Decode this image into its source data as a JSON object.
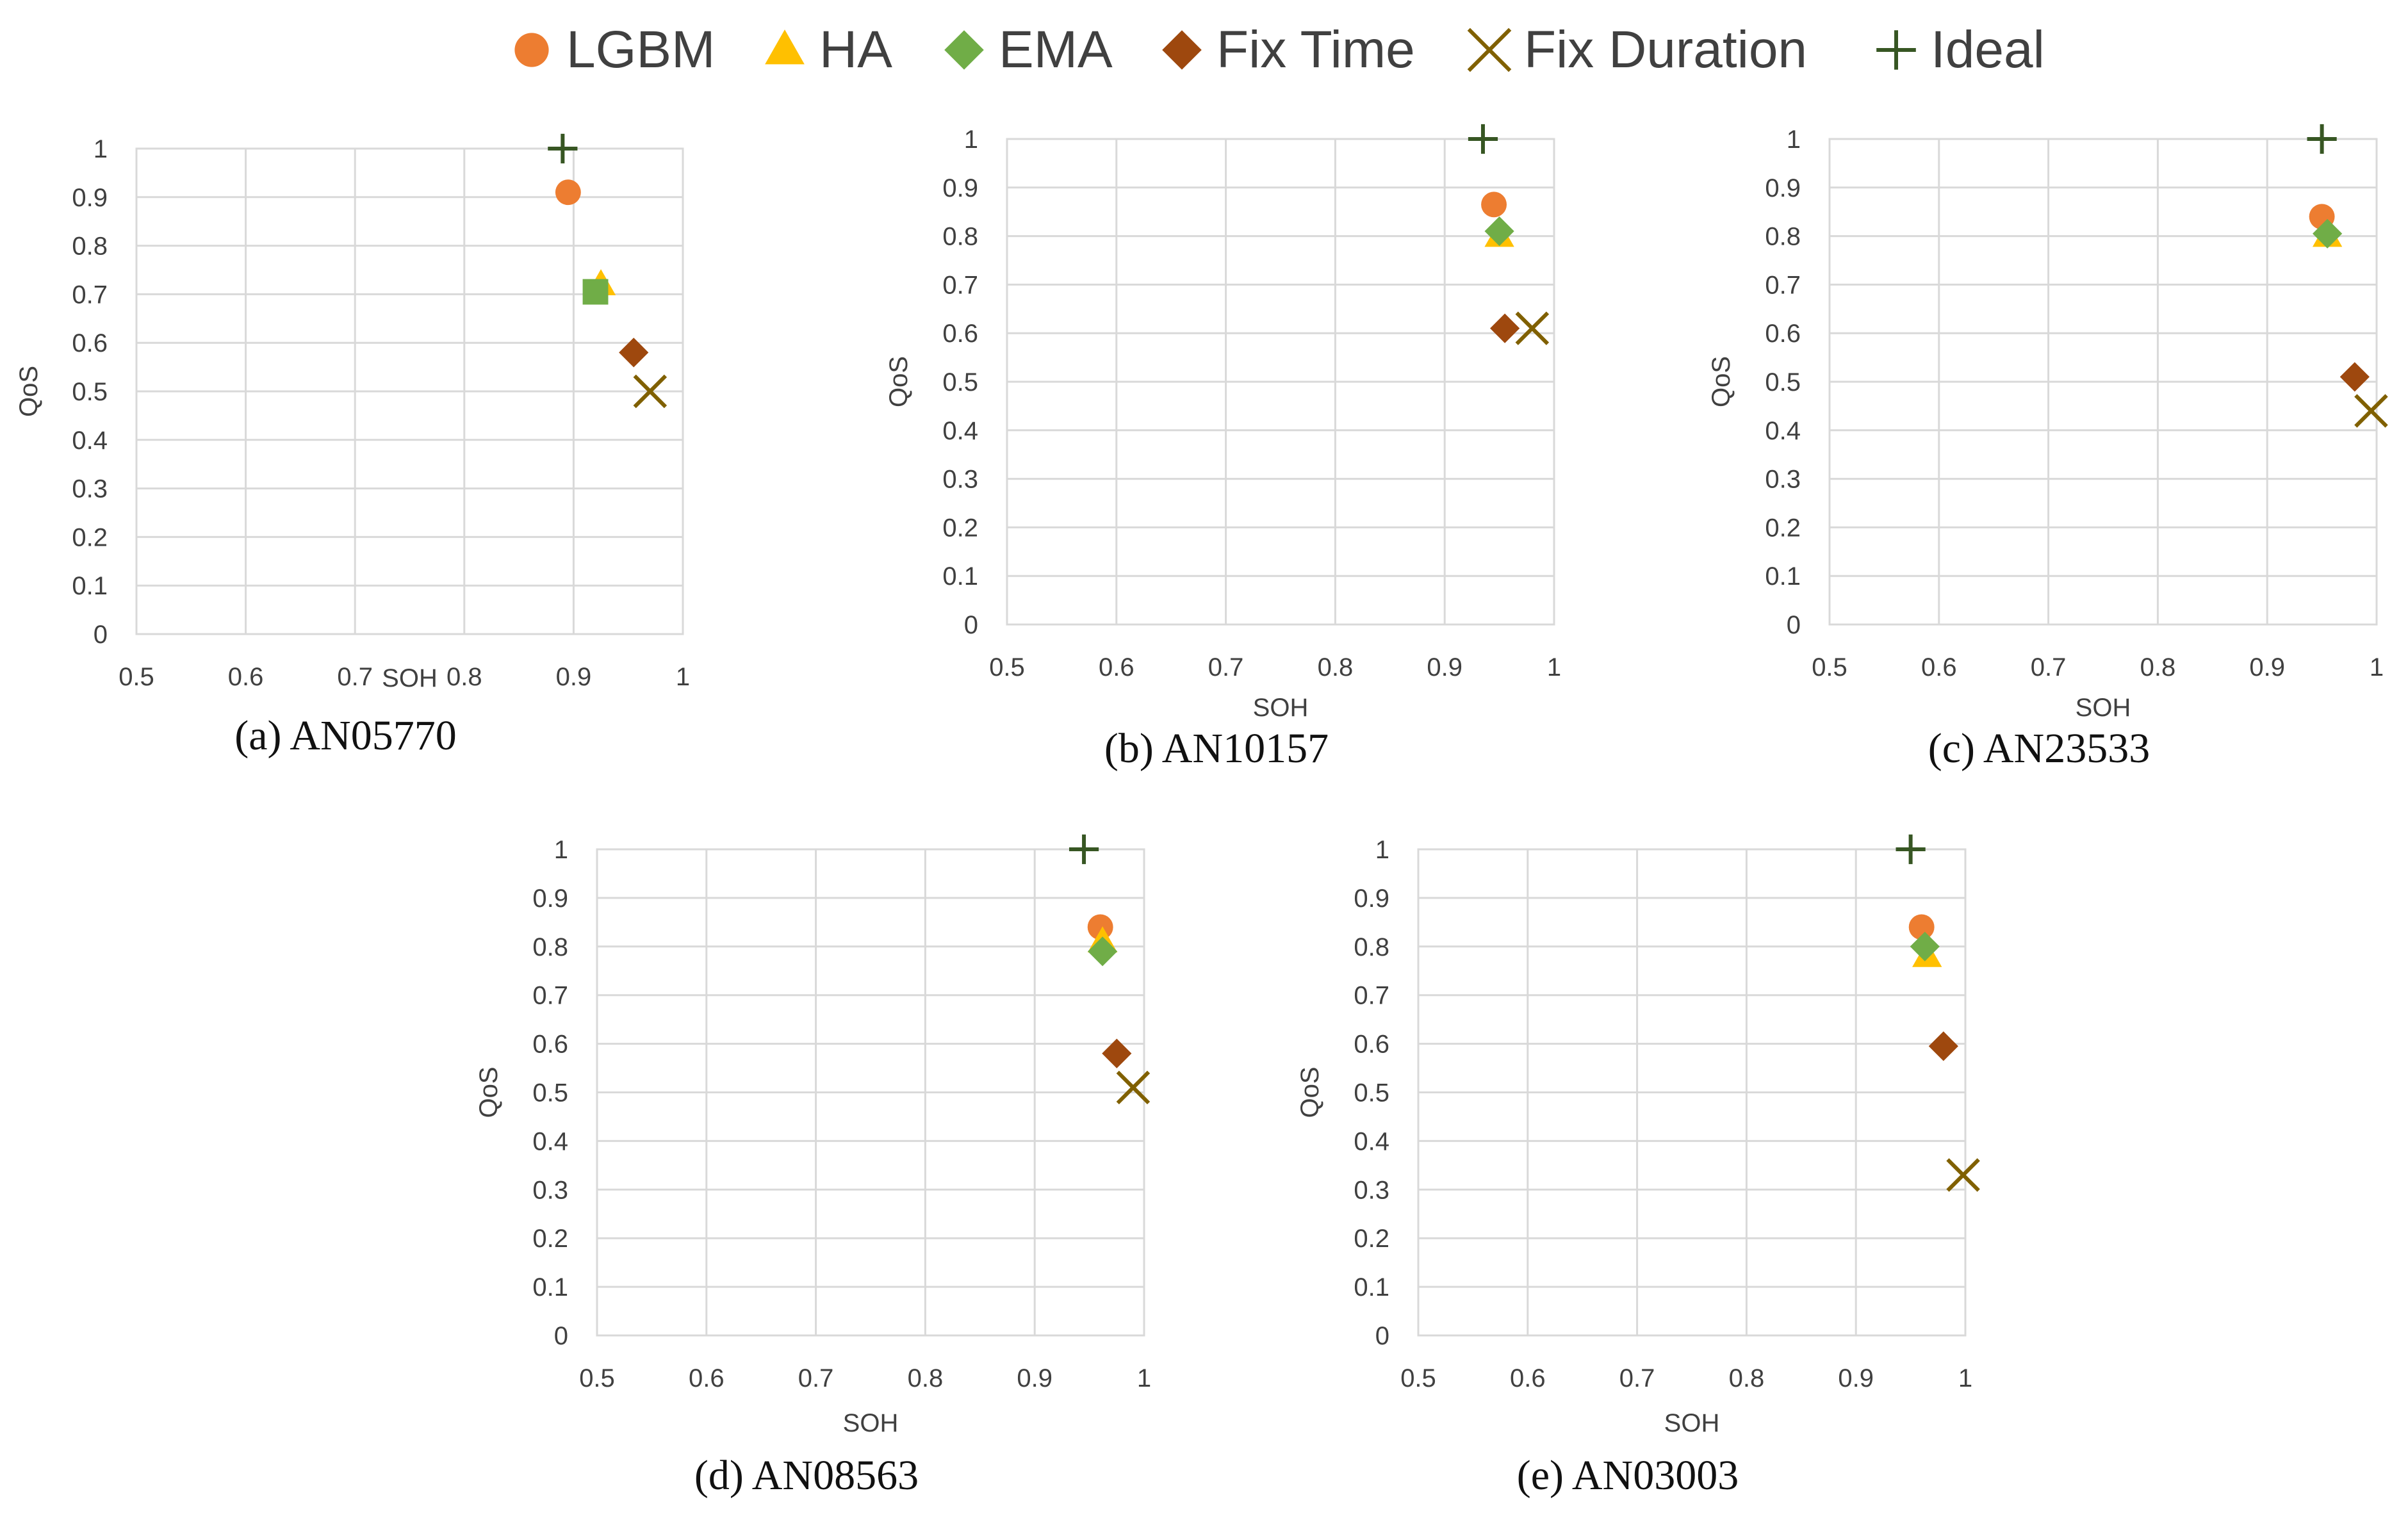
{
  "legend": [
    {
      "key": "lgbm",
      "label": "LGBM"
    },
    {
      "key": "ha",
      "label": "HA"
    },
    {
      "key": "ema",
      "label": "EMA"
    },
    {
      "key": "fixtime",
      "label": "Fix Time"
    },
    {
      "key": "fixduration",
      "label": "Fix Duration"
    },
    {
      "key": "ideal",
      "label": "Ideal"
    }
  ],
  "colors": {
    "lgbm": "#ED7D31",
    "ha": "#FFC000",
    "ema": "#70AD47",
    "fixtime": "#9E480E",
    "fixduration": "#806000",
    "ideal": "#375623",
    "grid": "#D9D9D9",
    "text": "#404040"
  },
  "chart_data": [
    {
      "type": "scatter",
      "caption": "(a) AN05770",
      "xlabel": "SOH",
      "ylabel": "QoS",
      "xlim": [
        0.5,
        1
      ],
      "ylim": [
        0,
        1
      ],
      "grid": true,
      "xticks": [
        "0.5",
        "0.6",
        "0.7",
        "0.8",
        "0.9",
        "1"
      ],
      "yticks": [
        "0",
        "0.1",
        "0.2",
        "0.3",
        "0.4",
        "0.5",
        "0.6",
        "0.7",
        "0.8",
        "0.9",
        "1"
      ],
      "series": [
        {
          "name": "Ideal",
          "key": "ideal",
          "x": 0.89,
          "y": 1.0
        },
        {
          "name": "LGBM",
          "key": "lgbm",
          "x": 0.895,
          "y": 0.91
        },
        {
          "name": "HA",
          "key": "ha",
          "x": 0.925,
          "y": 0.72
        },
        {
          "name": "EMA",
          "key": "ema",
          "x": 0.92,
          "y": 0.705,
          "square": true
        },
        {
          "name": "Fix Time",
          "key": "fixtime",
          "x": 0.955,
          "y": 0.58
        },
        {
          "name": "Fix Duration",
          "key": "fixduration",
          "x": 0.97,
          "y": 0.5
        }
      ]
    },
    {
      "type": "scatter",
      "caption": "(b) AN10157",
      "xlabel": "SOH",
      "ylabel": "QoS",
      "xlim": [
        0.5,
        1
      ],
      "ylim": [
        0,
        1
      ],
      "grid": true,
      "xticks": [
        "0.5",
        "0.6",
        "0.7",
        "0.8",
        "0.9",
        "1"
      ],
      "yticks": [
        "0",
        "0.1",
        "0.2",
        "0.3",
        "0.4",
        "0.5",
        "0.6",
        "0.7",
        "0.8",
        "0.9",
        "1"
      ],
      "series": [
        {
          "name": "Ideal",
          "key": "ideal",
          "x": 0.935,
          "y": 1.0
        },
        {
          "name": "LGBM",
          "key": "lgbm",
          "x": 0.945,
          "y": 0.865
        },
        {
          "name": "HA",
          "key": "ha",
          "x": 0.95,
          "y": 0.8
        },
        {
          "name": "EMA",
          "key": "ema",
          "x": 0.95,
          "y": 0.81
        },
        {
          "name": "Fix Time",
          "key": "fixtime",
          "x": 0.955,
          "y": 0.61
        },
        {
          "name": "Fix Duration",
          "key": "fixduration",
          "x": 0.98,
          "y": 0.61
        }
      ]
    },
    {
      "type": "scatter",
      "caption": "(c) AN23533",
      "xlabel": "SOH",
      "ylabel": "QoS",
      "xlim": [
        0.5,
        1
      ],
      "ylim": [
        0,
        1
      ],
      "grid": true,
      "xticks": [
        "0.5",
        "0.6",
        "0.7",
        "0.8",
        "0.9",
        "1"
      ],
      "yticks": [
        "0",
        "0.1",
        "0.2",
        "0.3",
        "0.4",
        "0.5",
        "0.6",
        "0.7",
        "0.8",
        "0.9",
        "1"
      ],
      "series": [
        {
          "name": "Ideal",
          "key": "ideal",
          "x": 0.95,
          "y": 1.0
        },
        {
          "name": "LGBM",
          "key": "lgbm",
          "x": 0.95,
          "y": 0.84
        },
        {
          "name": "HA",
          "key": "ha",
          "x": 0.955,
          "y": 0.8
        },
        {
          "name": "EMA",
          "key": "ema",
          "x": 0.955,
          "y": 0.805
        },
        {
          "name": "Fix Time",
          "key": "fixtime",
          "x": 0.98,
          "y": 0.51
        },
        {
          "name": "Fix Duration",
          "key": "fixduration",
          "x": 0.995,
          "y": 0.44
        }
      ]
    },
    {
      "type": "scatter",
      "caption": "(d) AN08563",
      "xlabel": "SOH",
      "ylabel": "QoS",
      "xlim": [
        0.5,
        1
      ],
      "ylim": [
        0,
        1
      ],
      "grid": true,
      "xticks": [
        "0.5",
        "0.6",
        "0.7",
        "0.8",
        "0.9",
        "1"
      ],
      "yticks": [
        "0",
        "0.1",
        "0.2",
        "0.3",
        "0.4",
        "0.5",
        "0.6",
        "0.7",
        "0.8",
        "0.9",
        "1"
      ],
      "series": [
        {
          "name": "Ideal",
          "key": "ideal",
          "x": 0.945,
          "y": 1.0
        },
        {
          "name": "LGBM",
          "key": "lgbm",
          "x": 0.96,
          "y": 0.84
        },
        {
          "name": "HA",
          "key": "ha",
          "x": 0.962,
          "y": 0.81
        },
        {
          "name": "EMA",
          "key": "ema",
          "x": 0.962,
          "y": 0.79
        },
        {
          "name": "Fix Time",
          "key": "fixtime",
          "x": 0.975,
          "y": 0.58
        },
        {
          "name": "Fix Duration",
          "key": "fixduration",
          "x": 0.99,
          "y": 0.51
        }
      ]
    },
    {
      "type": "scatter",
      "caption": "(e) AN03003",
      "xlabel": "SOH",
      "ylabel": "QoS",
      "xlim": [
        0.5,
        1
      ],
      "ylim": [
        0,
        1
      ],
      "grid": true,
      "xticks": [
        "0.5",
        "0.6",
        "0.7",
        "0.8",
        "0.9",
        "1"
      ],
      "yticks": [
        "0",
        "0.1",
        "0.2",
        "0.3",
        "0.4",
        "0.5",
        "0.6",
        "0.7",
        "0.8",
        "0.9",
        "1"
      ],
      "series": [
        {
          "name": "Ideal",
          "key": "ideal",
          "x": 0.95,
          "y": 1.0
        },
        {
          "name": "LGBM",
          "key": "lgbm",
          "x": 0.96,
          "y": 0.84
        },
        {
          "name": "HA",
          "key": "ha",
          "x": 0.965,
          "y": 0.78
        },
        {
          "name": "EMA",
          "key": "ema",
          "x": 0.963,
          "y": 0.8
        },
        {
          "name": "Fix Time",
          "key": "fixtime",
          "x": 0.98,
          "y": 0.595
        },
        {
          "name": "Fix Duration",
          "key": "fixduration",
          "x": 0.998,
          "y": 0.33
        }
      ]
    }
  ]
}
